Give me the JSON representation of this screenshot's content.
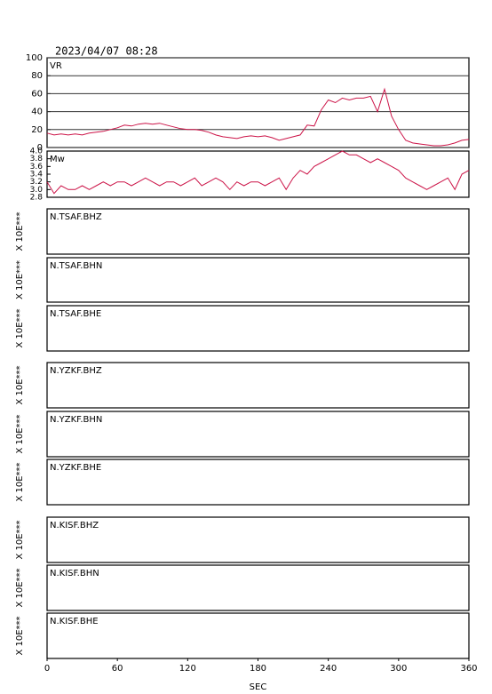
{
  "chart_data": [
    {
      "type": "line",
      "title": "2023/04/07 08:28",
      "xlim": [
        0,
        360
      ],
      "ylim": [
        0,
        100
      ],
      "yticks": [
        0,
        20,
        40,
        60,
        80,
        100
      ],
      "grid": true,
      "x": [
        0,
        6,
        12,
        18,
        24,
        30,
        36,
        42,
        48,
        54,
        60,
        66,
        72,
        78,
        84,
        90,
        96,
        102,
        108,
        114,
        120,
        126,
        132,
        138,
        144,
        150,
        156,
        162,
        168,
        174,
        180,
        186,
        192,
        198,
        204,
        210,
        216,
        222,
        228,
        234,
        240,
        246,
        252,
        258,
        264,
        270,
        276,
        282,
        288,
        294,
        300,
        306,
        312,
        318,
        324,
        330,
        336,
        342,
        348,
        354,
        360
      ],
      "series": [
        {
          "name": "VR",
          "color": "#cc1448",
          "values": [
            16,
            14,
            15,
            14,
            15,
            14,
            16,
            17,
            18,
            20,
            22,
            25,
            24,
            26,
            27,
            26,
            27,
            25,
            23,
            21,
            20,
            20,
            19,
            17,
            14,
            12,
            11,
            10,
            12,
            13,
            12,
            13,
            11,
            8,
            10,
            12,
            14,
            25,
            24,
            42,
            53,
            50,
            55,
            53,
            55,
            55,
            57,
            40,
            65,
            35,
            20,
            8,
            5,
            4,
            3,
            2,
            2,
            3,
            5,
            8,
            9
          ]
        }
      ]
    },
    {
      "type": "line",
      "xlim": [
        0,
        360
      ],
      "ylim": [
        2.8,
        4.0
      ],
      "yticks": [
        2.8,
        {
          "value": 3,
          "label": "3.0"
        },
        3.2,
        3.4,
        3.6,
        3.8,
        {
          "value": 4,
          "label": "4.0"
        }
      ],
      "grid": false,
      "x": [
        0,
        6,
        12,
        18,
        24,
        30,
        36,
        42,
        48,
        54,
        60,
        66,
        72,
        78,
        84,
        90,
        96,
        102,
        108,
        114,
        120,
        126,
        132,
        138,
        144,
        150,
        156,
        162,
        168,
        174,
        180,
        186,
        192,
        198,
        204,
        210,
        216,
        222,
        228,
        234,
        240,
        246,
        252,
        258,
        264,
        270,
        276,
        282,
        288,
        294,
        300,
        306,
        312,
        318,
        324,
        330,
        336,
        342,
        348,
        354,
        360
      ],
      "series": [
        {
          "name": "Mw",
          "color": "#cc1448",
          "values": [
            3.2,
            2.9,
            3.1,
            3.0,
            3.0,
            3.1,
            3.0,
            3.1,
            3.2,
            3.1,
            3.2,
            3.2,
            3.1,
            3.2,
            3.3,
            3.2,
            3.1,
            3.2,
            3.2,
            3.1,
            3.2,
            3.3,
            3.1,
            3.2,
            3.3,
            3.2,
            3.0,
            3.2,
            3.1,
            3.2,
            3.2,
            3.1,
            3.2,
            3.3,
            3.0,
            3.3,
            3.5,
            3.4,
            3.6,
            3.7,
            3.8,
            3.9,
            4.0,
            3.9,
            3.9,
            3.8,
            3.7,
            3.8,
            3.7,
            3.6,
            3.5,
            3.3,
            3.2,
            3.1,
            3.0,
            3.1,
            3.2,
            3.3,
            3.0,
            3.4,
            3.5
          ]
        }
      ]
    },
    {
      "type": "line",
      "label": "N.TSAF.BHZ",
      "ylabel": "X 10E***",
      "xlim": [
        0,
        360
      ]
    },
    {
      "type": "line",
      "label": "N.TSAF.BHN",
      "ylabel": "X 10E***",
      "xlim": [
        0,
        360
      ]
    },
    {
      "type": "line",
      "label": "N.TSAF.BHE",
      "ylabel": "X 10E***",
      "xlim": [
        0,
        360
      ]
    },
    {
      "type": "line",
      "label": "N.YZKF.BHZ",
      "ylabel": "X 10E***",
      "xlim": [
        0,
        360
      ]
    },
    {
      "type": "line",
      "label": "N.YZKF.BHN",
      "ylabel": "X 10E***",
      "xlim": [
        0,
        360
      ]
    },
    {
      "type": "line",
      "label": "N.YZKF.BHE",
      "ylabel": "X 10E***",
      "xlim": [
        0,
        360
      ]
    },
    {
      "type": "line",
      "label": "N.KISF.BHZ",
      "ylabel": "X 10E***",
      "xlim": [
        0,
        360
      ]
    },
    {
      "type": "line",
      "label": "N.KISF.BHN",
      "ylabel": "X 10E***",
      "xlim": [
        0,
        360
      ]
    },
    {
      "type": "line",
      "label": "N.KISF.BHE",
      "ylabel": "X 10E***",
      "xlim": [
        0,
        360
      ],
      "xlabel": "SEC",
      "xticks": [
        0,
        60,
        120,
        180,
        240,
        300,
        360
      ]
    }
  ]
}
